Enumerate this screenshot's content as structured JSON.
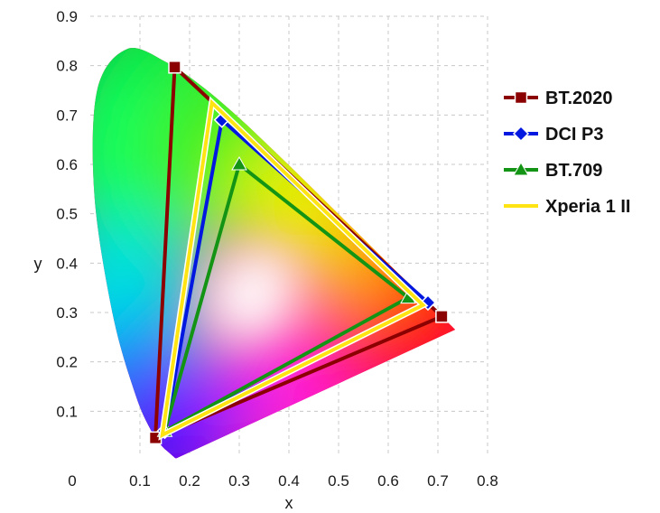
{
  "chart_data": {
    "type": "line",
    "title": "",
    "xlabel": "x",
    "ylabel": "y",
    "xlim": [
      0,
      0.8
    ],
    "ylim": [
      0,
      0.9
    ],
    "xticks": [
      0,
      0.1,
      0.2,
      0.3,
      0.4,
      0.5,
      0.6,
      0.7,
      0.8
    ],
    "xtick_labels": [
      "0",
      "0.1",
      "0.2",
      "0.3",
      "0.4",
      "0.5",
      "0.6",
      "0.7",
      "0.8"
    ],
    "yticks": [
      0.1,
      0.2,
      0.3,
      0.4,
      0.5,
      0.6,
      0.7,
      0.8,
      0.9
    ],
    "ytick_labels": [
      "0.1",
      "0.2",
      "0.3",
      "0.4",
      "0.5",
      "0.6",
      "0.7",
      "0.8",
      "0.9"
    ],
    "grid": true,
    "legend_position": "right",
    "background": "CIE 1931 chromaticity diagram (spectral locus gamut)",
    "locus": {
      "x": [
        0.174,
        0.173,
        0.1714,
        0.1689,
        0.1644,
        0.1566,
        0.144,
        0.1241,
        0.0913,
        0.0454,
        0.0082,
        0.0139,
        0.0743,
        0.1547,
        0.2296,
        0.3016,
        0.3731,
        0.4441,
        0.5125,
        0.5752,
        0.627,
        0.6658,
        0.6915,
        0.7079,
        0.717,
        0.7347
      ],
      "y": [
        0.005,
        0.0048,
        0.0051,
        0.0069,
        0.0109,
        0.0177,
        0.0297,
        0.0578,
        0.1327,
        0.295,
        0.5384,
        0.7502,
        0.8338,
        0.8059,
        0.7543,
        0.6923,
        0.6245,
        0.5547,
        0.4866,
        0.4242,
        0.3725,
        0.334,
        0.3083,
        0.292,
        0.283,
        0.2653
      ]
    },
    "series": [
      {
        "name": "BT.2020",
        "color": "#8b0000",
        "marker": "square",
        "x": [
          0.708,
          0.17,
          0.131
        ],
        "y": [
          0.292,
          0.797,
          0.046
        ]
      },
      {
        "name": "DCI P3",
        "color": "#0018e0",
        "marker": "diamond",
        "x": [
          0.68,
          0.265,
          0.15
        ],
        "y": [
          0.32,
          0.69,
          0.06
        ]
      },
      {
        "name": "BT.709",
        "color": "#149414",
        "marker": "triangle",
        "x": [
          0.64,
          0.3,
          0.15
        ],
        "y": [
          0.33,
          0.6,
          0.06
        ]
      },
      {
        "name": "Xperia 1 II",
        "color": "#ffe414",
        "marker": "none",
        "x": [
          0.67,
          0.245,
          0.145
        ],
        "y": [
          0.315,
          0.725,
          0.052
        ]
      }
    ],
    "legend_labels": [
      "BT.2020",
      "DCI P3",
      "BT.709",
      "Xperia 1 II"
    ]
  }
}
